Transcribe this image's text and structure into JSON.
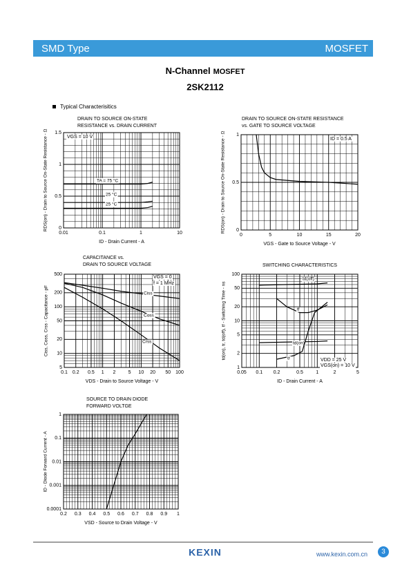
{
  "header": {
    "left": "SMD Type",
    "right": "MOSFET"
  },
  "title": {
    "main": "N-Channel",
    "suffix": "MOSFET"
  },
  "part": "2SK2112",
  "section": "Typical  Characterisitics",
  "chart_data": [
    {
      "type": "line",
      "title": [
        "DRAIN TO SOURCE ON-STATE",
        "RESISTANCE vs. DRAIN CURRENT"
      ],
      "xlabel": "ID - Drain Current - A",
      "ylabel": "RDS(on) - Drain to Source On-State Resistance - Ω",
      "xscale": "log",
      "yscale": "linear",
      "grid": true,
      "xlim": [
        0.01,
        10
      ],
      "ylim": [
        0,
        1.5
      ],
      "xticks": [
        0.01,
        0.1,
        1,
        10
      ],
      "yticks": [
        0,
        0.5,
        1,
        1.5
      ],
      "annotations": [
        "VGS = 10 V"
      ],
      "series": [
        {
          "name": "TA = 75 °C",
          "color": "#000000",
          "x": [
            0.01,
            0.1,
            1,
            1.5,
            2
          ],
          "values": [
            0.69,
            0.69,
            0.69,
            0.7,
            0.72
          ]
        },
        {
          "name": "25 °C",
          "color": "#000000",
          "x": [
            0.01,
            0.1,
            1,
            1.5,
            2
          ],
          "values": [
            0.4,
            0.4,
            0.4,
            0.41,
            0.42
          ]
        },
        {
          "name": "25 °C",
          "color": "#000000",
          "x": [
            0.01,
            0.1,
            1,
            1.5,
            2
          ],
          "values": [
            0.31,
            0.31,
            0.31,
            0.32,
            0.34
          ]
        }
      ]
    },
    {
      "type": "line",
      "title": [
        "DRAIN TO SOURCE ON-STATE RESISTANCE",
        "vs. GATE TO SOURCE VOLTAGE"
      ],
      "xlabel": "VGS - Gate to Source Voltage - V",
      "ylabel": "RDS(on) - Drain to Source On-State Resistance - Ω",
      "xscale": "linear",
      "yscale": "linear",
      "grid": true,
      "xlim": [
        0,
        20
      ],
      "ylim": [
        0,
        1
      ],
      "xticks": [
        0,
        5,
        10,
        15,
        20
      ],
      "yticks": [
        0,
        0.5,
        1
      ],
      "annotations": [
        "ID = 0.5 A"
      ],
      "series": [
        {
          "color": "#000000",
          "x": [
            2.6,
            3,
            3.5,
            4,
            5,
            6,
            8,
            10,
            15,
            20
          ],
          "values": [
            1,
            0.8,
            0.66,
            0.6,
            0.55,
            0.53,
            0.52,
            0.51,
            0.5,
            0.48
          ]
        }
      ]
    },
    {
      "type": "line",
      "title": [
        "CAPACITANCE vs.",
        "DRAIN TO SOURCE VOLTAGE"
      ],
      "xlabel": "VDS - Drain to Source Voltage - V",
      "ylabel": "Ciss, Coss, Crss - Capacitance - pF",
      "xscale": "log",
      "yscale": "log",
      "grid": true,
      "xlim": [
        0.1,
        100
      ],
      "ylim": [
        5,
        500
      ],
      "xticks": [
        0.1,
        0.2,
        0.5,
        1,
        2,
        5,
        10,
        20,
        50,
        100
      ],
      "yticks": [
        5,
        10,
        20,
        50,
        100,
        200,
        500
      ],
      "annotations": [
        "VGS = 0",
        "f = 1 MHz"
      ],
      "series": [
        {
          "name": "Ciss",
          "color": "#000000",
          "x": [
            0.1,
            0.3,
            1,
            3,
            10,
            30,
            100
          ],
          "values": [
            330,
            290,
            250,
            215,
            190,
            170,
            150
          ]
        },
        {
          "name": "Coss",
          "color": "#000000",
          "x": [
            0.1,
            0.3,
            1,
            3,
            10,
            30,
            100
          ],
          "values": [
            320,
            260,
            180,
            120,
            80,
            55,
            40
          ]
        },
        {
          "name": "Crss",
          "color": "#000000",
          "x": [
            0.1,
            0.3,
            1,
            3,
            10,
            30,
            100
          ],
          "values": [
            260,
            160,
            90,
            50,
            25,
            13,
            7
          ]
        }
      ]
    },
    {
      "type": "line",
      "title": [
        "SWITCHING CHARACTERISTICS"
      ],
      "xlabel": "ID - Drain Current - A",
      "ylabel": "td(on), tr, td(off), tf - Switching Time - ns",
      "xscale": "log",
      "yscale": "log",
      "grid": true,
      "xlim": [
        0.05,
        5
      ],
      "ylim": [
        1,
        100
      ],
      "xticks": [
        0.05,
        0.1,
        0.2,
        0.5,
        1,
        2,
        5
      ],
      "yticks": [
        1,
        2,
        5,
        10,
        20,
        50,
        100
      ],
      "annotations": [
        "VDD = 25 V",
        "VGS(on) = 10 V"
      ],
      "series": [
        {
          "name": "td(off)",
          "color": "#000000",
          "x": [
            0.1,
            0.3,
            1,
            1.5
          ],
          "values": [
            58,
            60,
            62,
            65
          ]
        },
        {
          "name": "tf",
          "color": "#000000",
          "x": [
            0.2,
            0.3,
            0.5,
            0.7,
            1,
            1.5
          ],
          "values": [
            30,
            20,
            15,
            15,
            17,
            22
          ]
        },
        {
          "name": "td(on)",
          "color": "#000000",
          "x": [
            0.1,
            0.3,
            1,
            1.5
          ],
          "values": [
            3.4,
            3.5,
            3.6,
            3.7
          ]
        },
        {
          "name": "tr",
          "color": "#000000",
          "x": [
            0.2,
            0.4,
            0.55,
            0.7,
            0.9,
            1.5
          ],
          "values": [
            1.5,
            1.8,
            2.2,
            6,
            15,
            25
          ]
        }
      ]
    },
    {
      "type": "line",
      "title": [
        "SOURCE TO DRAIN DIODE",
        "FORWARD VOLTGE"
      ],
      "xlabel": "VSD - Source to Drain Voltage - V",
      "ylabel": "ID - Diode Forward Current - A",
      "xscale": "linear",
      "yscale": "log",
      "grid": true,
      "xlim": [
        0.2,
        1
      ],
      "ylim": [
        0.0001,
        1
      ],
      "xticks": [
        0.2,
        0.3,
        0.4,
        0.5,
        0.6,
        0.7,
        0.8,
        0.9,
        1
      ],
      "yticks": [
        0.0001,
        0.001,
        0.01,
        0.1,
        1
      ],
      "annotations": [],
      "series": [
        {
          "color": "#000000",
          "x": [
            0.5,
            0.55,
            0.6,
            0.65,
            0.7,
            0.75,
            0.78
          ],
          "values": [
            0.0001,
            0.001,
            0.01,
            0.05,
            0.15,
            0.5,
            1
          ]
        }
      ]
    }
  ],
  "footer": {
    "brand": "KEXIN",
    "url": "www.kexin.com.cn",
    "page": "3"
  }
}
